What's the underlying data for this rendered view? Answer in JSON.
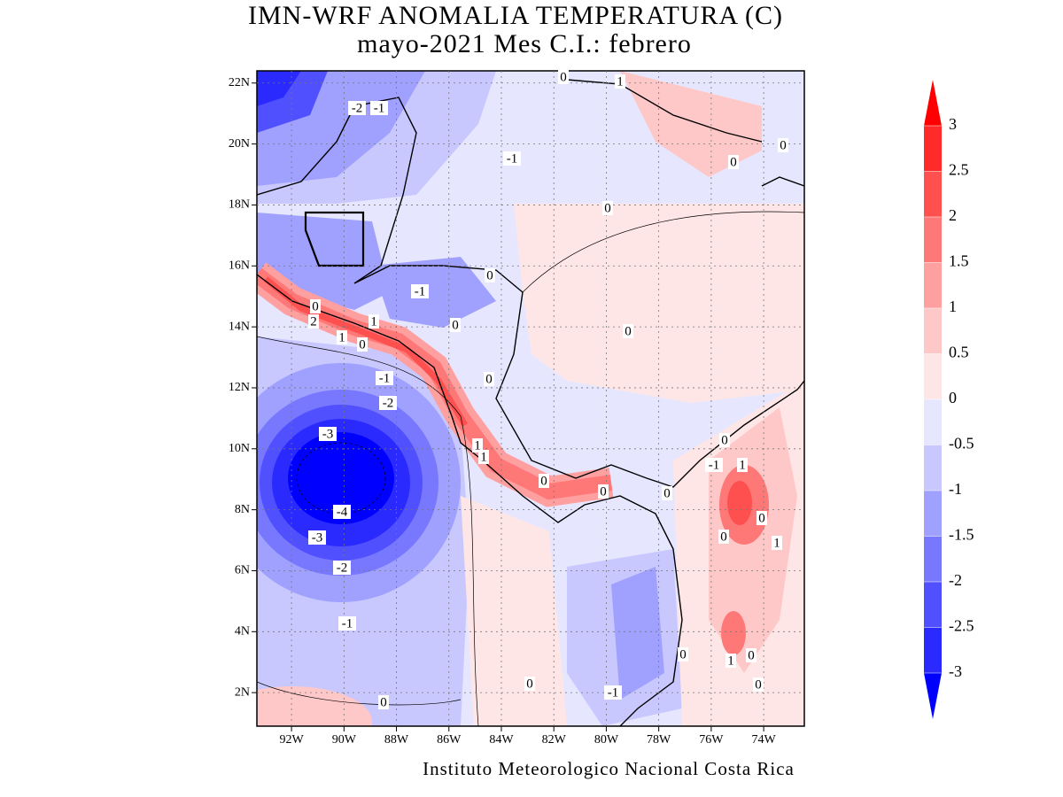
{
  "chart_data": {
    "type": "filled-contour-map",
    "title": "IMN-WRF  ANOMALIA TEMPERATURA (C)",
    "subtitle": "mayo-2021 Mes C.I.: febrero",
    "footer": "Instituto Meteorologico Nacional Costa Rica",
    "xlim": [
      -93.32,
      -72.45
    ],
    "ylim": [
      0.9,
      22.4
    ],
    "xticks": [
      {
        "value": -92,
        "label": "92W"
      },
      {
        "value": -90,
        "label": "90W"
      },
      {
        "value": -88,
        "label": "88W"
      },
      {
        "value": -86,
        "label": "86W"
      },
      {
        "value": -84,
        "label": "84W"
      },
      {
        "value": -82,
        "label": "82W"
      },
      {
        "value": -80,
        "label": "80W"
      },
      {
        "value": -78,
        "label": "78W"
      },
      {
        "value": -76,
        "label": "76W"
      },
      {
        "value": -74,
        "label": "74W"
      }
    ],
    "yticks": [
      {
        "value": 2,
        "label": "2N"
      },
      {
        "value": 4,
        "label": "4N"
      },
      {
        "value": 6,
        "label": "6N"
      },
      {
        "value": 8,
        "label": "8N"
      },
      {
        "value": 10,
        "label": "10N"
      },
      {
        "value": 12,
        "label": "12N"
      },
      {
        "value": 14,
        "label": "14N"
      },
      {
        "value": 16,
        "label": "16N"
      },
      {
        "value": 18,
        "label": "18N"
      },
      {
        "value": 20,
        "label": "20N"
      },
      {
        "value": 22,
        "label": "22N"
      }
    ],
    "grid": true,
    "colorbar": {
      "levels": [
        -3,
        -2.5,
        -2,
        -1.5,
        -1,
        -0.5,
        0,
        0.5,
        1,
        1.5,
        2,
        2.5,
        3
      ],
      "colors": [
        "#0000ff",
        "#2a2aff",
        "#5050ff",
        "#7878ff",
        "#a0a0ff",
        "#c8c8ff",
        "#e6e6ff",
        "#ffe6e6",
        "#ffc8c8",
        "#ffa0a0",
        "#ff7878",
        "#ff5050",
        "#ff2a2a",
        "#ff0000"
      ]
    },
    "contour_labels": [
      "-2",
      "-1",
      "-1",
      "0",
      "1",
      "0",
      "0",
      "0",
      "0",
      "-1",
      "0",
      "2",
      "1",
      "0",
      "1",
      "0",
      "0",
      "-1",
      "0",
      "-2",
      "-3",
      "0",
      "1",
      "1",
      "-1",
      "1",
      "0",
      "0",
      "0",
      "-4",
      "0",
      "-3",
      "0",
      "1",
      "-2",
      "-1",
      "0",
      "0",
      "1",
      "0",
      "0",
      "-1",
      "0"
    ]
  }
}
